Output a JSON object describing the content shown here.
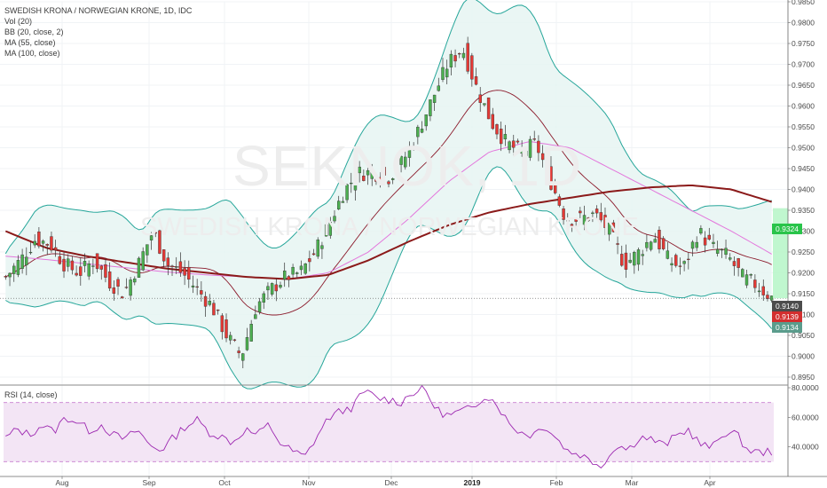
{
  "legend": {
    "symbol": "SWEDISH KRONA / NORWEGIAN KRONE, 1D, IDC",
    "vol": "Vol (20)",
    "bb": "BB (20, close, 2)",
    "ma55": "MA (55, close)",
    "ma100": "MA (100, close)"
  },
  "watermark": {
    "ticker": "SEKNOK, 1D",
    "name": "SWEDISH KRONA / NORWEGIAN KRONE"
  },
  "rsi_label": "RSI (14, close)",
  "price_tags": {
    "bb_upper": "0.9324",
    "close_dark": "0.9140",
    "close_red": "0.9139",
    "bb_lower": "0.9134"
  },
  "colors": {
    "up": "#4caf50",
    "down": "#e53935",
    "bb": "#26a69a",
    "bb_fill": "#e6f5f2",
    "ma20": "#8b1a2b",
    "ma55": "#e377dc",
    "ma100": "#8b1a1a",
    "rsi": "#9c27b0",
    "rsi_band": "#f3e5f5"
  },
  "chart_data": [
    {
      "type": "candlestick",
      "title": "SWEDISH KRONA / NORWEGIAN KRONE, 1D, IDC",
      "ylim": [
        0.895,
        0.985
      ],
      "y_ticks": [
        "0.9850",
        "0.9800",
        "0.9750",
        "0.9700",
        "0.9650",
        "0.9600",
        "0.9550",
        "0.9500",
        "0.9450",
        "0.9400",
        "0.9350",
        "0.9300",
        "0.9250",
        "0.9200",
        "0.9150",
        "0.9100",
        "0.9050",
        "0.9000",
        "0.8950"
      ],
      "x_ticks": [
        "Aug",
        "Sep",
        "Oct",
        "Nov",
        "Dec",
        "2019",
        "Feb",
        "Mar",
        "Apr"
      ],
      "series": [
        {
          "name": "MA (55, close)",
          "values": [
            0.924,
            0.9232,
            0.9222,
            0.9212,
            0.9202,
            0.9195,
            0.919,
            0.9185,
            0.92,
            0.925,
            0.933,
            0.942,
            0.949,
            0.9515,
            0.95,
            0.945,
            0.94,
            0.935,
            0.93,
            0.9245
          ]
        },
        {
          "name": "MA (100, close)",
          "values": [
            0.93,
            0.926,
            0.924,
            0.9225,
            0.921,
            0.92,
            0.919,
            0.9185,
            0.9195,
            0.923,
            0.9275,
            0.9315,
            0.9345,
            0.9365,
            0.938,
            0.9395,
            0.9405,
            0.941,
            0.94,
            0.937
          ]
        }
      ],
      "last_close": 0.9139
    },
    {
      "type": "line",
      "title": "RSI (14, close)",
      "ylim": [
        20,
        80
      ],
      "y_ticks": [
        "80.0000",
        "60.0000",
        "40.0000"
      ],
      "band": [
        30,
        70
      ],
      "values": [
        46,
        52,
        48,
        55,
        50,
        60,
        57,
        51,
        55,
        48,
        45,
        52,
        41,
        38,
        46,
        54,
        58,
        50,
        47,
        43,
        52,
        48,
        55,
        42,
        37,
        33,
        47,
        60,
        64,
        67,
        78,
        73,
        72,
        70,
        77,
        79,
        65,
        61,
        64,
        66,
        75,
        70,
        56,
        50,
        48,
        55,
        46,
        37,
        35,
        30,
        28,
        42,
        38,
        47,
        45,
        41,
        47,
        52,
        42,
        39,
        50,
        49,
        38,
        36,
        37
      ]
    }
  ]
}
